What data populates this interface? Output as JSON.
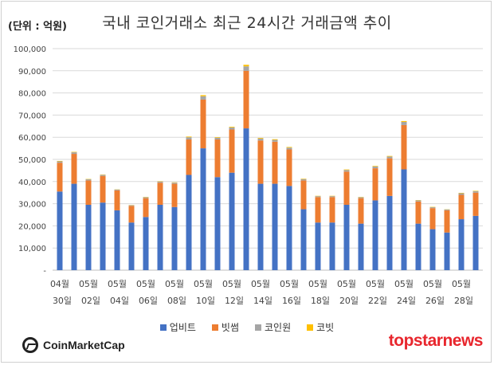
{
  "header": {
    "unit_label": "(단위 : 억원)",
    "title": "국내 코인거래소 최근 24시간 거래금액 추이"
  },
  "legend": [
    {
      "label": "업비트",
      "color": "#4472c4"
    },
    {
      "label": "빗썸",
      "color": "#ed7d31"
    },
    {
      "label": "코인원",
      "color": "#a5a5a5"
    },
    {
      "label": "코빗",
      "color": "#ffc000"
    }
  ],
  "branding": {
    "left_logo": "CoinMarketCap",
    "right_logo_a": "topstar",
    "right_logo_b": "news"
  },
  "chart_data": {
    "type": "bar",
    "stacked": true,
    "ylim": [
      0,
      100000
    ],
    "yticks": [
      0,
      10000,
      20000,
      30000,
      40000,
      50000,
      60000,
      70000,
      80000,
      90000,
      100000
    ],
    "ytick_labels": [
      "-",
      "10,000",
      "20,000",
      "30,000",
      "40,000",
      "50,000",
      "60,000",
      "70,000",
      "80,000",
      "90,000",
      "100,000"
    ],
    "grid": true,
    "legend_position": "bottom",
    "categories": [
      "04월 30일",
      "05월 01일",
      "05월 02일",
      "05월 03일",
      "05월 04일",
      "05월 05일",
      "05월 06일",
      "05월 07일",
      "05월 08일",
      "05월 09일",
      "05월 10일",
      "05월 11일",
      "05월 12일",
      "05월 13일",
      "05월 14일",
      "05월 15일",
      "05월 16일",
      "05월 17일",
      "05월 18일",
      "05월 19일",
      "05월 20일",
      "05월 21일",
      "05월 22일",
      "05월 23일",
      "05월 24일",
      "05월 25일",
      "05월 26일",
      "05월 27일",
      "05월 28일",
      "05월 29일"
    ],
    "x_tick_labels": [
      {
        "index": 0,
        "month": "04월",
        "day": "30일"
      },
      {
        "index": 2,
        "month": "05월",
        "day": "02일"
      },
      {
        "index": 4,
        "month": "05월",
        "day": "04일"
      },
      {
        "index": 6,
        "month": "05월",
        "day": "06일"
      },
      {
        "index": 8,
        "month": "05월",
        "day": "08일"
      },
      {
        "index": 10,
        "month": "05월",
        "day": "10일"
      },
      {
        "index": 12,
        "month": "05월",
        "day": "12일"
      },
      {
        "index": 14,
        "month": "05월",
        "day": "14일"
      },
      {
        "index": 16,
        "month": "05월",
        "day": "16일"
      },
      {
        "index": 18,
        "month": "05월",
        "day": "18일"
      },
      {
        "index": 20,
        "month": "05월",
        "day": "20일"
      },
      {
        "index": 22,
        "month": "05월",
        "day": "22일"
      },
      {
        "index": 24,
        "month": "05월",
        "day": "24일"
      },
      {
        "index": 26,
        "month": "05월",
        "day": "26일"
      },
      {
        "index": 28,
        "month": "05월",
        "day": "28일"
      }
    ],
    "series": [
      {
        "name": "업비트",
        "color": "#4472c4",
        "values": [
          35500,
          39000,
          29500,
          30500,
          27000,
          21500,
          24000,
          29500,
          28500,
          43000,
          55000,
          42000,
          44000,
          64000,
          39000,
          39000,
          38000,
          27500,
          21500,
          21500,
          29500,
          21000,
          31500,
          33500,
          45500,
          21000,
          18500,
          17000,
          23000,
          24500
        ]
      },
      {
        "name": "빗썸",
        "color": "#ed7d31",
        "values": [
          13000,
          13500,
          11000,
          12000,
          9000,
          7500,
          8500,
          10000,
          10500,
          16000,
          22000,
          17000,
          19500,
          26000,
          19500,
          19000,
          16500,
          13000,
          11500,
          11500,
          15000,
          11500,
          14500,
          17000,
          20000,
          10000,
          9500,
          10000,
          11000,
          10500
        ]
      },
      {
        "name": "코인원",
        "color": "#a5a5a5",
        "values": [
          600,
          700,
          500,
          500,
          400,
          300,
          400,
          500,
          500,
          1000,
          1500,
          800,
          900,
          2000,
          900,
          800,
          800,
          600,
          400,
          400,
          700,
          400,
          800,
          800,
          1400,
          500,
          400,
          400,
          700,
          600
        ]
      },
      {
        "name": "코빗",
        "color": "#ffc000",
        "values": [
          200,
          200,
          150,
          150,
          100,
          100,
          150,
          150,
          150,
          300,
          500,
          250,
          300,
          700,
          300,
          300,
          300,
          200,
          150,
          150,
          250,
          150,
          250,
          250,
          400,
          150,
          150,
          100,
          200,
          200
        ]
      }
    ]
  }
}
